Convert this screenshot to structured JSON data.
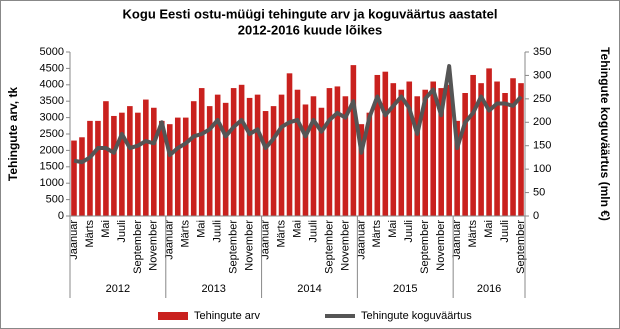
{
  "chart_data": {
    "type": "bar_line",
    "title": [
      "Kogu Eesti ostu-müügi tehingute arv ja koguväärtus aastatel",
      "2012-2016 kuude lõikes"
    ],
    "y_label": "Tehingute arv, tk",
    "y2_label": "Tehingute koguväärtus (mln €)",
    "categories": [
      "Jaanuar",
      null,
      "Märts",
      null,
      "Mai",
      null,
      "Juuli",
      null,
      "September",
      null,
      "November",
      null,
      "Jaanuar",
      null,
      "Märts",
      null,
      "Mai",
      null,
      "Juuli",
      null,
      "September",
      null,
      "November",
      null,
      "Jaanuar",
      null,
      "Märts",
      null,
      "Mai",
      null,
      "Juuli",
      null,
      "September",
      null,
      "November",
      null,
      "Jaanuar",
      null,
      "Märts",
      null,
      "Mai",
      null,
      "Juuli",
      null,
      "September",
      null,
      "November",
      null,
      "Jaanuar",
      null,
      "Märts",
      null,
      "Mai",
      null,
      "Juuli",
      null,
      "September"
    ],
    "years": [
      "2012",
      "2013",
      "2014",
      "2015",
      "2016"
    ],
    "series": [
      {
        "name": "Tehingute arv",
        "color": "#c9211e",
        "values": [
          2300,
          2400,
          2900,
          2900,
          3500,
          3050,
          3150,
          3350,
          3150,
          3550,
          3300,
          2900,
          2800,
          3000,
          3000,
          3500,
          3900,
          3350,
          3700,
          3450,
          3900,
          4000,
          3600,
          3700,
          3200,
          3350,
          3700,
          4350,
          3850,
          3400,
          3650,
          3300,
          3900,
          3950,
          3650,
          4600,
          2800,
          3150,
          4300,
          4400,
          4050,
          3850,
          4100,
          3650,
          3850,
          4100,
          3900,
          4000,
          2900,
          3750,
          4300,
          4050,
          4500,
          4100,
          3750,
          4200,
          4050
        ]
      },
      {
        "name": "Tehingute koguväärtus",
        "color": "#555555",
        "axis": "y2",
        "values": [
          118,
          115,
          125,
          145,
          145,
          135,
          175,
          145,
          150,
          160,
          155,
          200,
          130,
          145,
          155,
          170,
          175,
          185,
          205,
          170,
          190,
          205,
          175,
          185,
          145,
          165,
          190,
          200,
          205,
          170,
          205,
          180,
          205,
          220,
          210,
          245,
          135,
          210,
          255,
          215,
          235,
          255,
          230,
          175,
          250,
          270,
          215,
          320,
          145,
          200,
          220,
          255,
          225,
          240,
          240,
          235,
          255
        ]
      }
    ],
    "ylim": [
      0,
      5000
    ],
    "yticks": [
      0,
      500,
      1000,
      1500,
      2000,
      2500,
      3000,
      3500,
      4000,
      4500,
      5000
    ],
    "y2lim": [
      0,
      350
    ],
    "y2ticks": [
      0,
      50,
      100,
      150,
      200,
      250,
      300,
      350
    ]
  }
}
